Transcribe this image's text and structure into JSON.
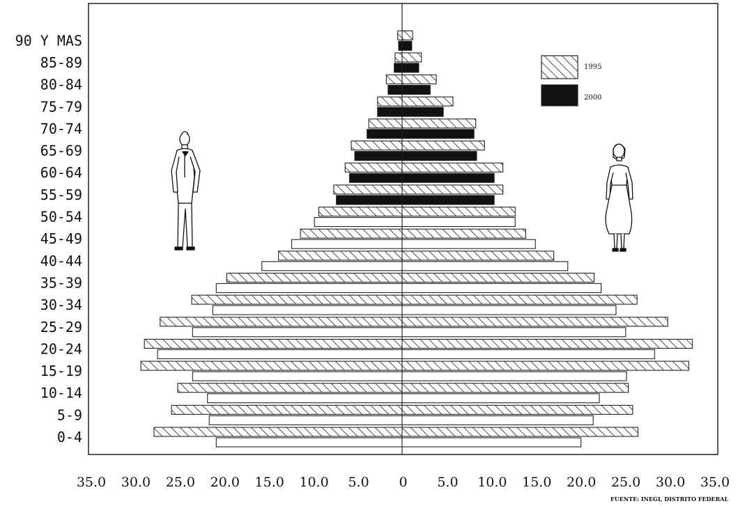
{
  "chart_data": {
    "type": "bar",
    "orientation": "horizontal",
    "subtype": "population-pyramid",
    "categories": [
      "0-4",
      "5-9",
      "10-14",
      "15-19",
      "20-24",
      "25-29",
      "30-34",
      "35-39",
      "40-44",
      "45-49",
      "50-54",
      "55-59",
      "60-64",
      "65-69",
      "70-74",
      "75-79",
      "80-84",
      "85-89",
      "90 Y MAS"
    ],
    "category_order": "bottom-to-top",
    "series": [
      {
        "name": "1995",
        "pattern": "hatched",
        "left_values": [
          28.3,
          26.3,
          25.6,
          29.8,
          29.4,
          27.6,
          24.0,
          20.0,
          14.1,
          11.6,
          9.5,
          7.8,
          6.5,
          5.8,
          3.8,
          2.8,
          1.8,
          0.8,
          0.5
        ],
        "right_values": [
          26.9,
          26.3,
          25.8,
          32.7,
          33.1,
          30.3,
          26.8,
          21.9,
          17.3,
          14.1,
          12.9,
          11.5,
          11.5,
          9.4,
          8.4,
          5.8,
          3.9,
          2.2,
          1.2
        ]
      },
      {
        "name": "2000",
        "pattern": "solid",
        "left_values": [
          21.2,
          22.0,
          22.2,
          23.9,
          27.9,
          23.9,
          21.6,
          21.2,
          16.0,
          12.6,
          10.0,
          7.5,
          6.0,
          5.4,
          4.0,
          2.8,
          1.6,
          0.9,
          0.4
        ],
        "right_values": [
          20.4,
          21.8,
          22.5,
          25.6,
          28.8,
          25.5,
          24.4,
          22.7,
          18.9,
          15.2,
          12.9,
          10.5,
          10.5,
          8.5,
          8.2,
          4.7,
          3.2,
          1.9,
          1.1
        ]
      }
    ],
    "x_ticks": [
      "35.0",
      "30.0",
      "25.0",
      "20.0",
      "15.0",
      "10.0",
      "5.0",
      "0",
      "5.0",
      "10.0",
      "15.0",
      "20.0",
      "25.0",
      "30.0",
      "35.0"
    ],
    "xlim": [
      -35,
      35
    ],
    "grid": false,
    "legend_position": "top-right",
    "title": "",
    "xlabel": "",
    "ylabel": "",
    "source_note": "FUENTE: INEGI, DISTRITO FEDERAL",
    "left_figure": "man-figure",
    "right_figure": "woman-figure"
  },
  "colors": {
    "bar_fill": "#ffffff",
    "hatch": "#222222",
    "solid": "#111111",
    "frame": "#222222"
  }
}
